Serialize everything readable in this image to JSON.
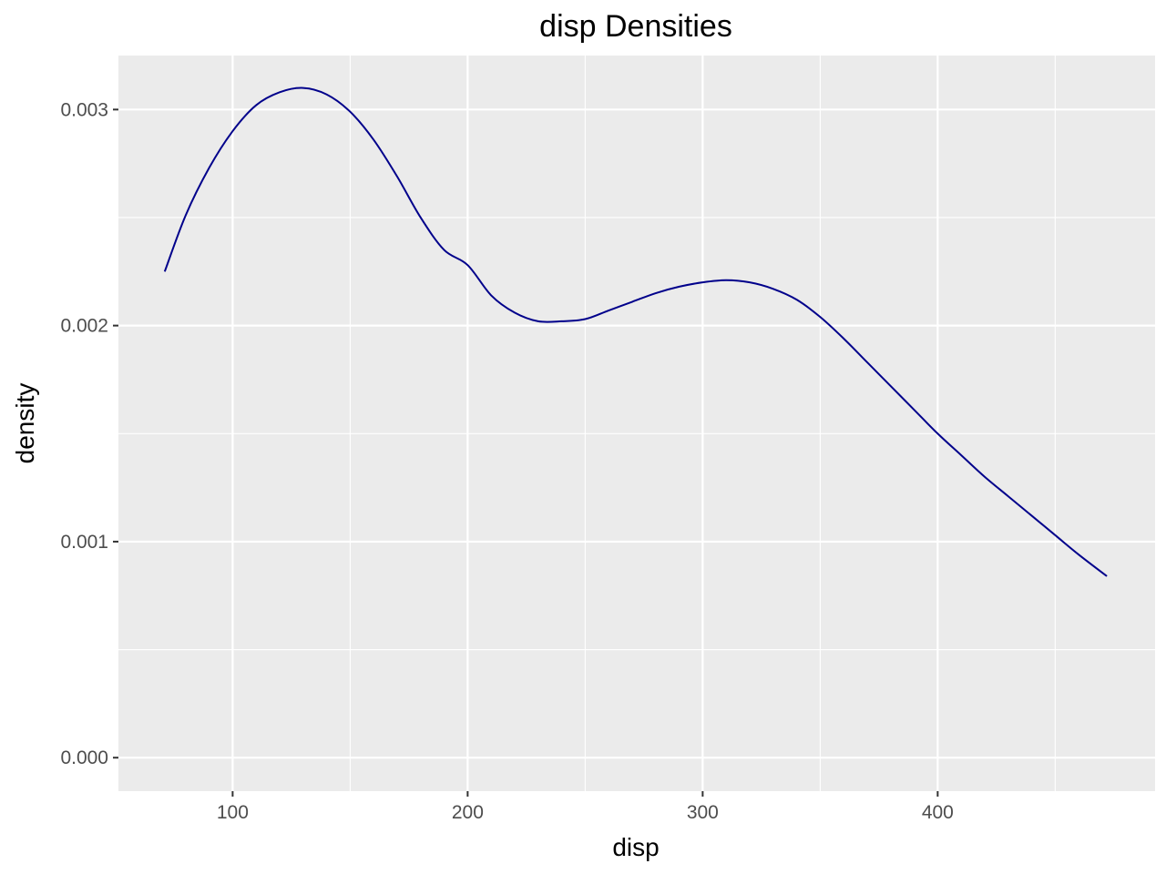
{
  "chart_data": {
    "type": "line",
    "title": "disp Densities",
    "xlabel": "disp",
    "ylabel": "density",
    "xlim": [
      51.4,
      492.5
    ],
    "ylim": [
      -0.000155,
      0.00325
    ],
    "x_major_ticks": [
      100,
      200,
      300,
      400
    ],
    "x_minor_ticks": [
      150,
      250,
      350,
      450
    ],
    "y_major_ticks": [
      0.0,
      0.001,
      0.002,
      0.003
    ],
    "y_minor_ticks": [
      0.0005,
      0.0015,
      0.0025
    ],
    "x_tick_labels": [
      "100",
      "200",
      "300",
      "400"
    ],
    "y_tick_labels": [
      "0.000",
      "0.001",
      "0.002",
      "0.003"
    ],
    "grid": true,
    "colors": {
      "panel": "#ebebeb",
      "grid": "#ffffff",
      "line": "#00008b"
    },
    "series": [
      {
        "x": [
          71.1,
          80,
          90,
          100,
          110,
          120,
          130,
          140,
          150,
          160,
          170,
          180,
          190,
          200,
          210,
          220,
          230,
          240,
          250,
          260,
          270,
          280,
          290,
          300,
          310,
          320,
          330,
          340,
          350,
          360,
          370,
          380,
          390,
          400,
          410,
          420,
          430,
          440,
          450,
          460,
          472
        ],
        "y": [
          0.00225,
          0.00251,
          0.00273,
          0.0029,
          0.00302,
          0.00308,
          0.0031,
          0.00307,
          0.00299,
          0.00286,
          0.00269,
          0.0025,
          0.00235,
          0.00228,
          0.00214,
          0.00206,
          0.00202,
          0.00202,
          0.00203,
          0.00207,
          0.00211,
          0.00215,
          0.00218,
          0.0022,
          0.00221,
          0.0022,
          0.00217,
          0.00212,
          0.00204,
          0.00194,
          0.00183,
          0.00172,
          0.00161,
          0.0015,
          0.0014,
          0.0013,
          0.00121,
          0.00112,
          0.00103,
          0.00094,
          0.00084
        ]
      }
    ]
  }
}
